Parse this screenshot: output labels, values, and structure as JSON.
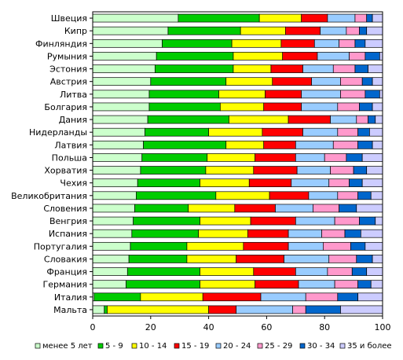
{
  "chart_data": {
    "type": "bar",
    "orientation": "horizontal",
    "stacked": true,
    "xlim": [
      0,
      100
    ],
    "xticks": [
      "0",
      "20",
      "40",
      "60",
      "80",
      "100"
    ],
    "grid": false,
    "legend_position": "bottom",
    "categories": [
      "Швеция",
      "Кипр",
      "Финляндия",
      "Румыния",
      "Эстония",
      "Австрия",
      "Литва",
      "Болгария",
      "Дания",
      "Нидерланды",
      "Латвия",
      "Польша",
      "Хорватия",
      "Чехия",
      "Великобритания",
      "Словения",
      "Венгрия",
      "Испания",
      "Португалия",
      "Словакия",
      "Франция",
      "Германия",
      "Италия",
      "Мальта"
    ],
    "series": [
      {
        "name": "менее 5 лет",
        "color": "#ccffcc",
        "values": [
          29.5,
          26,
          24,
          22,
          21.5,
          20,
          19.5,
          19.5,
          19,
          18,
          17.5,
          17,
          16.5,
          15.5,
          15,
          14.5,
          14,
          13.5,
          13,
          12.5,
          12,
          11.5,
          0.5,
          4
        ]
      },
      {
        "name": "5 - 9",
        "color": "#00cc00",
        "values": [
          28,
          25,
          24,
          26.5,
          27,
          26,
          24,
          24.5,
          28,
          22,
          28.5,
          22.5,
          22.5,
          21.5,
          27.5,
          18.5,
          23,
          23,
          19.5,
          20,
          25,
          25.5,
          16,
          1
        ]
      },
      {
        "name": "10 - 14",
        "color": "#ffff00",
        "values": [
          14.5,
          15.5,
          17,
          17,
          13,
          16,
          16,
          15,
          20.5,
          18.5,
          13,
          16.5,
          16.5,
          17,
          18.5,
          16,
          17.5,
          17,
          19.5,
          17,
          18.5,
          19,
          21.5,
          35
        ]
      },
      {
        "name": "15 - 19",
        "color": "#ff0000",
        "values": [
          9,
          12,
          11.5,
          12,
          11,
          13.5,
          12.5,
          13,
          14.5,
          14,
          11,
          14,
          15,
          14.5,
          13.5,
          14,
          15.5,
          14,
          15.5,
          16.5,
          14.5,
          15,
          20,
          9.5
        ]
      },
      {
        "name": "20 - 24",
        "color": "#99ccff",
        "values": [
          9.5,
          9,
          8.5,
          11,
          10.5,
          10,
          13.5,
          12.5,
          9,
          12,
          13,
          10,
          11.5,
          13,
          10,
          13,
          13.5,
          11.5,
          12,
          15.5,
          11,
          12.5,
          15.5,
          19.5
        ]
      },
      {
        "name": "25 - 29",
        "color": "#ff99cc",
        "values": [
          4,
          4.5,
          5.5,
          5.5,
          7.5,
          7.5,
          8.5,
          7.5,
          4,
          7,
          8.5,
          7.5,
          8,
          7,
          7,
          9,
          8.5,
          8,
          9.5,
          9.5,
          8.5,
          8,
          11,
          4.5
        ]
      },
      {
        "name": "30 - 34",
        "color": "#0066cc",
        "values": [
          2,
          2.5,
          3.5,
          5,
          4.5,
          3.5,
          5,
          4.5,
          2.5,
          4,
          5,
          5.5,
          4.5,
          4.5,
          4.5,
          6,
          5.5,
          5.5,
          5,
          5.5,
          5,
          4.5,
          7,
          12
        ]
      },
      {
        "name": "35 и более",
        "color": "#ccccff",
        "values": [
          3.5,
          5.5,
          6,
          1,
          5,
          3.5,
          1,
          3.5,
          2.5,
          4.5,
          3.5,
          7,
          5.5,
          7,
          4,
          9,
          2.5,
          7.5,
          6,
          3.5,
          5.5,
          4,
          8.5,
          14.5
        ]
      }
    ]
  }
}
